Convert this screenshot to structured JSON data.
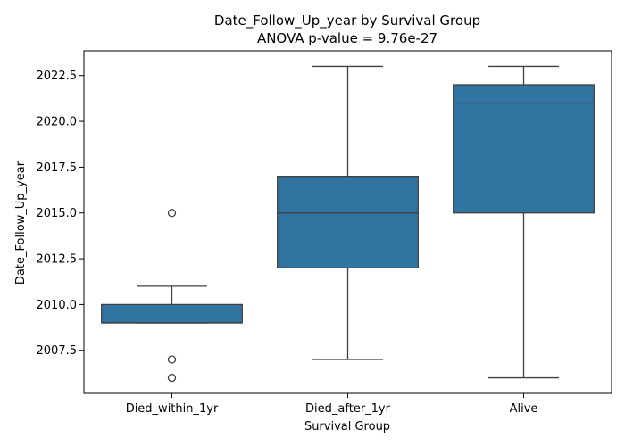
{
  "chart_data": {
    "type": "box",
    "title": "Date_Follow_Up_year by Survival Group",
    "subtitle": "ANOVA p-value = 9.76e-27",
    "xlabel": "Survival Group",
    "ylabel": "Date_Follow_Up_year",
    "categories": [
      "Died_within_1yr",
      "Died_after_1yr",
      "Alive"
    ],
    "ylim": [
      2005.15,
      2023.85
    ],
    "yticks": [
      2007.5,
      2010.0,
      2012.5,
      2015.0,
      2017.5,
      2020.0,
      2022.5
    ],
    "ytick_labels": [
      "2007.5",
      "2010.0",
      "2012.5",
      "2015.0",
      "2017.5",
      "2020.0",
      "2022.5"
    ],
    "box_color": "#3274a1",
    "line_color": "#3f3f3f",
    "grid": false,
    "boxes": [
      {
        "category": "Died_within_1yr",
        "whislo": 2009,
        "q1": 2009,
        "median": 2009,
        "q3": 2010,
        "whishi": 2011,
        "fliers": [
          2015,
          2007,
          2006
        ]
      },
      {
        "category": "Died_after_1yr",
        "whislo": 2007,
        "q1": 2012,
        "median": 2015,
        "q3": 2017,
        "whishi": 2023,
        "fliers": []
      },
      {
        "category": "Alive",
        "whislo": 2006,
        "q1": 2015,
        "median": 2021,
        "q3": 2022,
        "whishi": 2023,
        "fliers": []
      }
    ]
  }
}
